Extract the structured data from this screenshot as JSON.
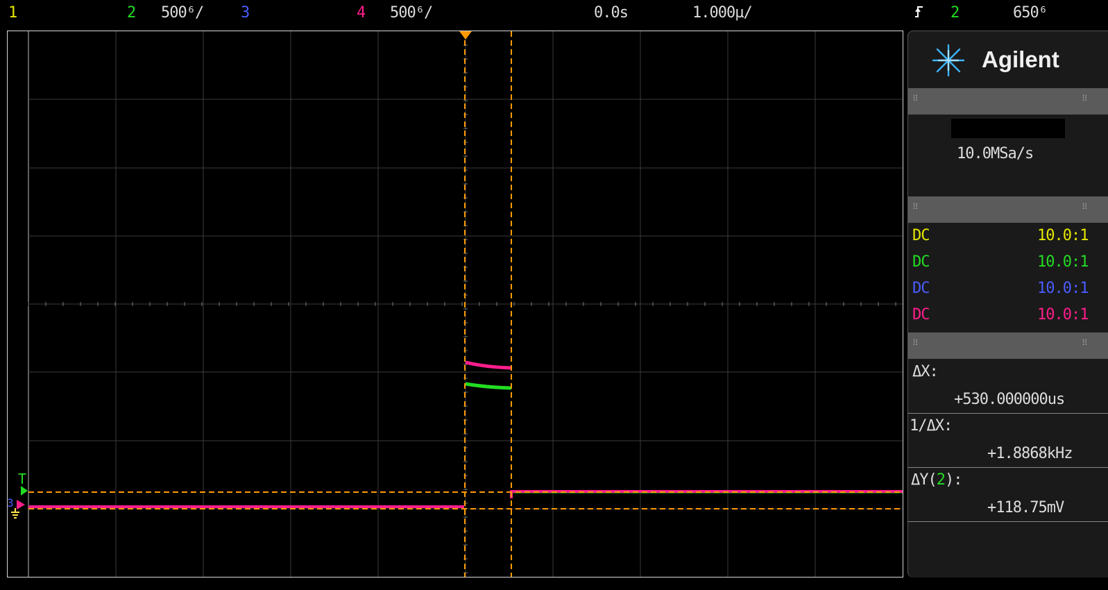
{
  "top": {
    "ch1_num": "1",
    "ch2_num": "2",
    "ch2_scale": "500⁶/",
    "ch3_num": "3",
    "ch4_num": "4",
    "ch4_scale": "500⁶/",
    "time_pos": "0.0s",
    "time_scale": "1.000µ/",
    "trigger_slope_icon": "rising-edge-icon",
    "trigger_source": "2",
    "trigger_level": "650⁶"
  },
  "panel": {
    "logo_text": "Agilent",
    "sample_rate": "10.0MSa/s",
    "channels": [
      {
        "coupling": "DC",
        "probe": "10.0:1",
        "color": "#e6e600"
      },
      {
        "coupling": "DC",
        "probe": "10.0:1",
        "color": "#22dd22"
      },
      {
        "coupling": "DC",
        "probe": "10.0:1",
        "color": "#4a5cff"
      },
      {
        "coupling": "DC",
        "probe": "10.0:1",
        "color": "#ff1e8c"
      }
    ],
    "measurements": {
      "dx_label": "ΔX:",
      "dx_value": "+530.000000us",
      "inv_dx_label": "1/ΔX:",
      "inv_dx_value": "+1.8868kHz",
      "dy_label_prefix": "ΔY(",
      "dy_channel": "2",
      "dy_label_suffix": "):",
      "dy_value": "+118.75mV"
    }
  },
  "markers": {
    "trigger_marker": "T",
    "ground_marker": "3"
  },
  "colors": {
    "ch1": "#e6e600",
    "ch2": "#22dd22",
    "ch3": "#4a5cff",
    "ch4": "#ff1e8c",
    "cursor": "#ff9900",
    "grid": "#3c3c3c"
  }
}
